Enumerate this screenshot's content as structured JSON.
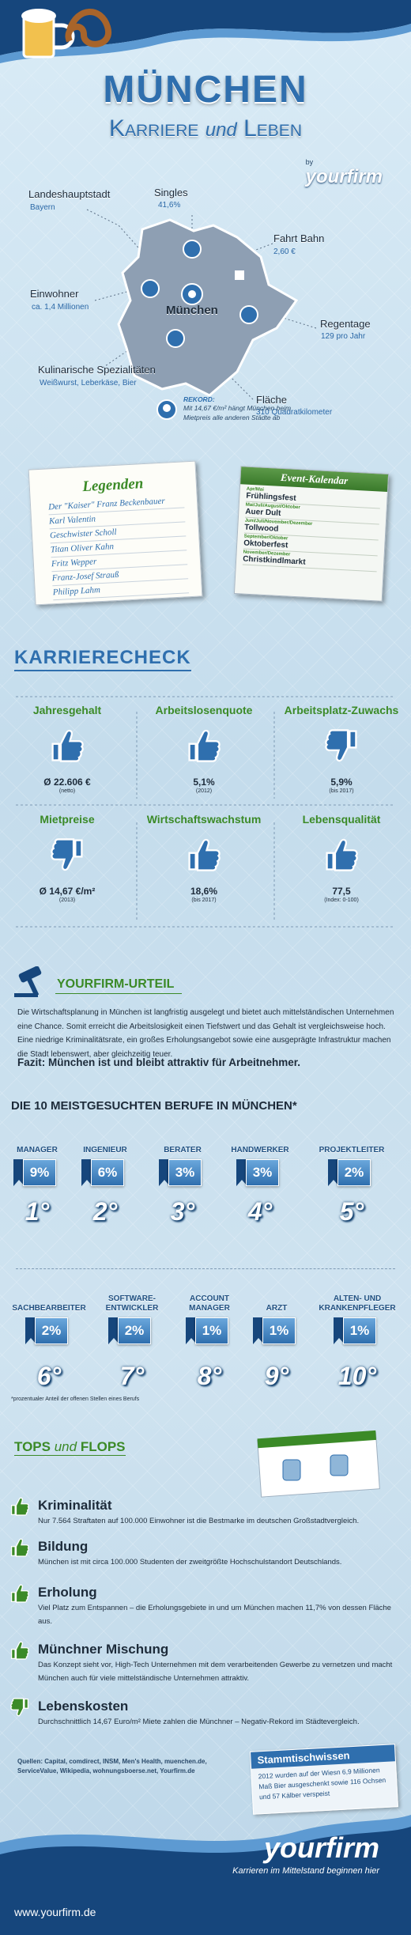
{
  "header": {
    "title": "München",
    "subtitle_1": "Karriere",
    "subtitle_and": "und",
    "subtitle_2": "Leben",
    "by": "by",
    "brand": "yourfirm"
  },
  "map": {
    "center": "München",
    "facts": [
      {
        "label": "Singles",
        "value": "41,6%"
      },
      {
        "label": "Landeshauptstadt",
        "value": "Bayern"
      },
      {
        "label": "Fahrt Bahn",
        "value": "2,60 €"
      },
      {
        "label": "Einwohner",
        "value": "ca. 1,4 Millionen"
      },
      {
        "label": "Regentage",
        "value": "129 pro Jahr"
      },
      {
        "label": "Kulinarische Spezialitäten",
        "value": "Weißwurst, Leberkäse, Bier"
      },
      {
        "label": "Fläche",
        "value": "310 Quadratkilometer"
      }
    ],
    "record": {
      "label": "REKORD:",
      "text": "Mit 14,67 €/m² hängt München beim Mietpreis alle anderen Städte ab"
    }
  },
  "legends": {
    "title": "Legenden",
    "names": [
      "Der \"Kaiser\" Franz Beckenbauer",
      "Karl Valentin",
      "Geschwister Scholl",
      "Titan Oliver Kahn",
      "Fritz Wepper",
      "Franz-Josef Strauß",
      "Philipp Lahm"
    ]
  },
  "events": {
    "title": "Event-Kalendar",
    "items": [
      {
        "months": "Apr/Mai",
        "name": "Frühlingsfest"
      },
      {
        "months": "Mai/Juli/August/Oktober",
        "name": "Auer Dult"
      },
      {
        "months": "Juni/Juli/November/Dezember",
        "name": "Tollwood"
      },
      {
        "months": "September/Oktober",
        "name": "Oktoberfest"
      },
      {
        "months": "November/Dezember",
        "name": "Christkindlmarkt"
      }
    ]
  },
  "career_check": {
    "title": "KARRIERECHECK",
    "items": [
      {
        "label": "Jahresgehalt",
        "value": "Ø 22.606 €",
        "note": "(netto)",
        "thumb": "up"
      },
      {
        "label": "Arbeitslosenquote",
        "value": "5,1%",
        "note": "(2012)",
        "thumb": "up"
      },
      {
        "label": "Arbeitsplatz-Zuwachs",
        "value": "5,9%",
        "note": "(bis 2017)",
        "thumb": "down"
      },
      {
        "label": "Mietpreise",
        "value": "Ø 14,67 €/m²",
        "note": "(2013)",
        "thumb": "down"
      },
      {
        "label": "Wirtschaftswachstum",
        "value": "18,6%",
        "note": "(bis 2017)",
        "thumb": "up"
      },
      {
        "label": "Lebensqualität",
        "value": "77,5",
        "note": "(Index: 0-100)",
        "thumb": "up"
      }
    ]
  },
  "verdict": {
    "title": "YOURFIRM-URTEIL",
    "text": "Die Wirtschaftsplanung in München ist langfristig ausgelegt und bietet auch mittelständischen Unternehmen eine Chance. Somit erreicht die Arbeitslosigkeit einen Tiefstwert und das Gehalt ist vergleichsweise hoch. Eine niedrige Kriminalitätsrate, ein großes Erholungsangebot sowie eine ausgeprägte Infrastruktur machen die Stadt lebenswert, aber gleichzeitig teuer.",
    "conclusion": "Fazit: München ist und bleibt attraktiv für Arbeitnehmer."
  },
  "jobs": {
    "title": "DIE 10 MEISTGESUCHTEN BERUFE IN MÜNCHEN*",
    "items": [
      {
        "name": "MANAGER",
        "share": "9%",
        "rank": "1°"
      },
      {
        "name": "INGENIEUR",
        "share": "6%",
        "rank": "2°"
      },
      {
        "name": "BERATER",
        "share": "3%",
        "rank": "3°"
      },
      {
        "name": "HANDWERKER",
        "share": "3%",
        "rank": "4°"
      },
      {
        "name": "PROJEKTLEITER",
        "share": "2%",
        "rank": "5°"
      },
      {
        "name": "SACHBEARBEITER",
        "share": "2%",
        "rank": "6°"
      },
      {
        "name": "SOFTWARE-\nENTWICKLER",
        "share": "2%",
        "rank": "7°"
      },
      {
        "name": "ACCOUNT\nMANAGER",
        "share": "1%",
        "rank": "8°"
      },
      {
        "name": "ARZT",
        "share": "1%",
        "rank": "9°"
      },
      {
        "name": "ALTEN- UND\nKRANKENPFLEGER",
        "share": "1%",
        "rank": "10°"
      }
    ],
    "footnote": "*prozentualer Anteil der offenen Stellen eines Berufs"
  },
  "tops_flops": {
    "title_1": "TOPS",
    "title_and": "und",
    "title_2": "FLOPS",
    "items": [
      {
        "title": "Kriminalität",
        "text": "Nur 7.564 Straftaten auf 100.000 Einwohner ist die Bestmarke im deutschen Großstadtvergleich.",
        "thumb": "up"
      },
      {
        "title": "Bildung",
        "text": "München ist mit circa 100.000 Studenten der zweitgrößte Hochschulstandort Deutschlands.",
        "thumb": "up"
      },
      {
        "title": "Erholung",
        "text": "Viel Platz zum Entspannen – die Erholungsgebiete in und um München machen 11,7% von dessen Fläche aus.",
        "thumb": "up"
      },
      {
        "title": "Münchner Mischung",
        "text": "Das Konzept sieht vor, High-Tech Unternehmen mit dem verarbeitenden Gewerbe zu vernetzen und macht München auch für viele mittelständische Unternehmen attraktiv.",
        "thumb": "up"
      },
      {
        "title": "Lebenskosten",
        "text": "Durchschnittlich 14,67 Euro/m² Miete zahlen die Münchner – Negativ-Rekord im Städtevergleich.",
        "thumb": "down"
      }
    ]
  },
  "sources": "Quellen: Capital, comdirect, INSM, Men's Health, muenchen.de, ServiceValue, Wikipedia, wohnungsboerse.net, Yourfirm.de",
  "trivia": {
    "title": "Stammtischwissen",
    "text": "2012 wurden auf der Wiesn 6,9 Millionen Maß Bier ausgeschenkt sowie 116 Ochsen und 57 Kälber verspeist"
  },
  "footer": {
    "url": "www.yourfirm.de",
    "brand": "yourfirm",
    "tagline": "Karrieren im Mittelstand beginnen hier"
  }
}
